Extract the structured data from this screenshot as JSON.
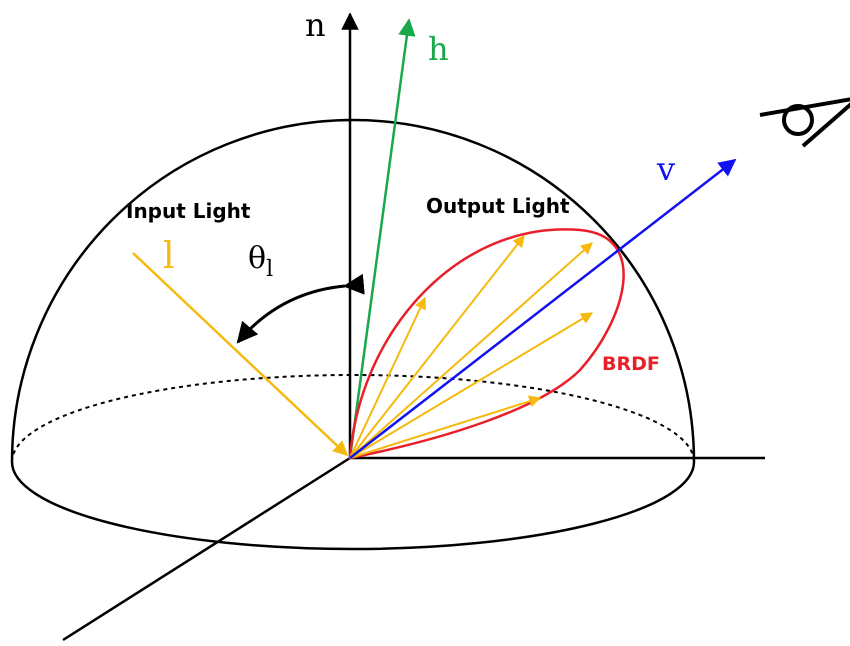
{
  "labels": {
    "normal": "n",
    "half_vector": "h",
    "view": "v",
    "light": "l",
    "theta": "θ",
    "theta_sub": "l",
    "input_light": "Input Light",
    "output_light": "Output Light",
    "brdf": "BRDF"
  },
  "colors": {
    "black": "#000000",
    "light": "#F5B90F",
    "half_vector": "#19A84A",
    "view": "#1212F0",
    "brdf": "#E8202A"
  },
  "icons": {
    "viewer": "eye-icon"
  }
}
